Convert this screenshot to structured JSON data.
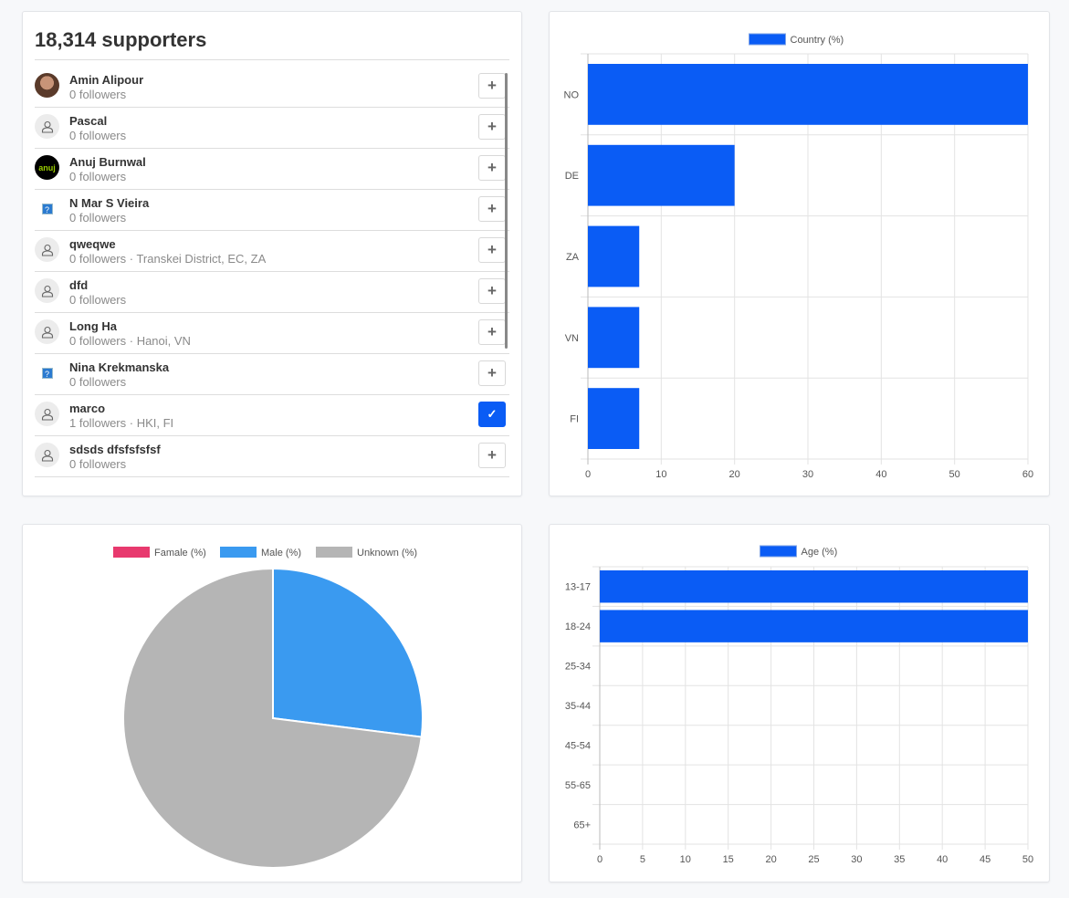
{
  "supporters": {
    "title": "18,314 supporters",
    "items": [
      {
        "name": "Amin Alipour",
        "sub": "0 followers",
        "avatar": "photo",
        "following": false
      },
      {
        "name": "Pascal",
        "sub": "0 followers",
        "avatar": "default",
        "following": false
      },
      {
        "name": "Anuj Burnwal",
        "sub": "0 followers",
        "avatar": "anuj",
        "following": false
      },
      {
        "name": "N Mar S Vieira",
        "sub": "0 followers",
        "avatar": "broken",
        "following": false
      },
      {
        "name": "qweqwe",
        "sub": "0 followers · Transkei District, EC, ZA",
        "avatar": "default",
        "following": false
      },
      {
        "name": "dfd",
        "sub": "0 followers",
        "avatar": "default",
        "following": false
      },
      {
        "name": "Long Ha",
        "sub": "0 followers · Hanoi, VN",
        "avatar": "default",
        "following": false
      },
      {
        "name": "Nina Krekmanska",
        "sub": "0 followers",
        "avatar": "broken",
        "following": false
      },
      {
        "name": "marco",
        "sub": "1 followers · HKI, FI",
        "avatar": "default",
        "following": true
      },
      {
        "name": "sdsds dfsfsfsfsf",
        "sub": "0 followers",
        "avatar": "default",
        "following": false
      }
    ]
  },
  "chart_data": [
    {
      "type": "bar",
      "orientation": "horizontal",
      "categories": [
        "NO",
        "DE",
        "ZA",
        "VN",
        "FI"
      ],
      "series": [
        {
          "name": "Country (%)",
          "values": [
            60,
            20,
            7,
            7,
            7
          ],
          "color": "#0a5cf5"
        }
      ],
      "xlim": [
        0,
        60
      ],
      "xticks": [
        0,
        10,
        20,
        30,
        40,
        50,
        60
      ],
      "grid": true,
      "legend": "top"
    },
    {
      "type": "pie",
      "categories": [
        "Famale (%)",
        "Male (%)",
        "Unknown (%)"
      ],
      "values": [
        0,
        27,
        73
      ],
      "colors": [
        "#e8396e",
        "#3a9af0",
        "#b5b5b5"
      ],
      "legend": "top"
    },
    {
      "type": "bar",
      "orientation": "horizontal",
      "categories": [
        "13-17",
        "18-24",
        "25-34",
        "35-44",
        "45-54",
        "55-65",
        "65+"
      ],
      "series": [
        {
          "name": "Age (%)",
          "values": [
            50,
            50,
            0,
            0,
            0,
            0,
            0
          ],
          "color": "#0a5cf5"
        }
      ],
      "xlim": [
        0,
        50
      ],
      "xticks": [
        0,
        5,
        10,
        15,
        20,
        25,
        30,
        35,
        40,
        45,
        50
      ],
      "grid": true,
      "legend": "top"
    }
  ]
}
